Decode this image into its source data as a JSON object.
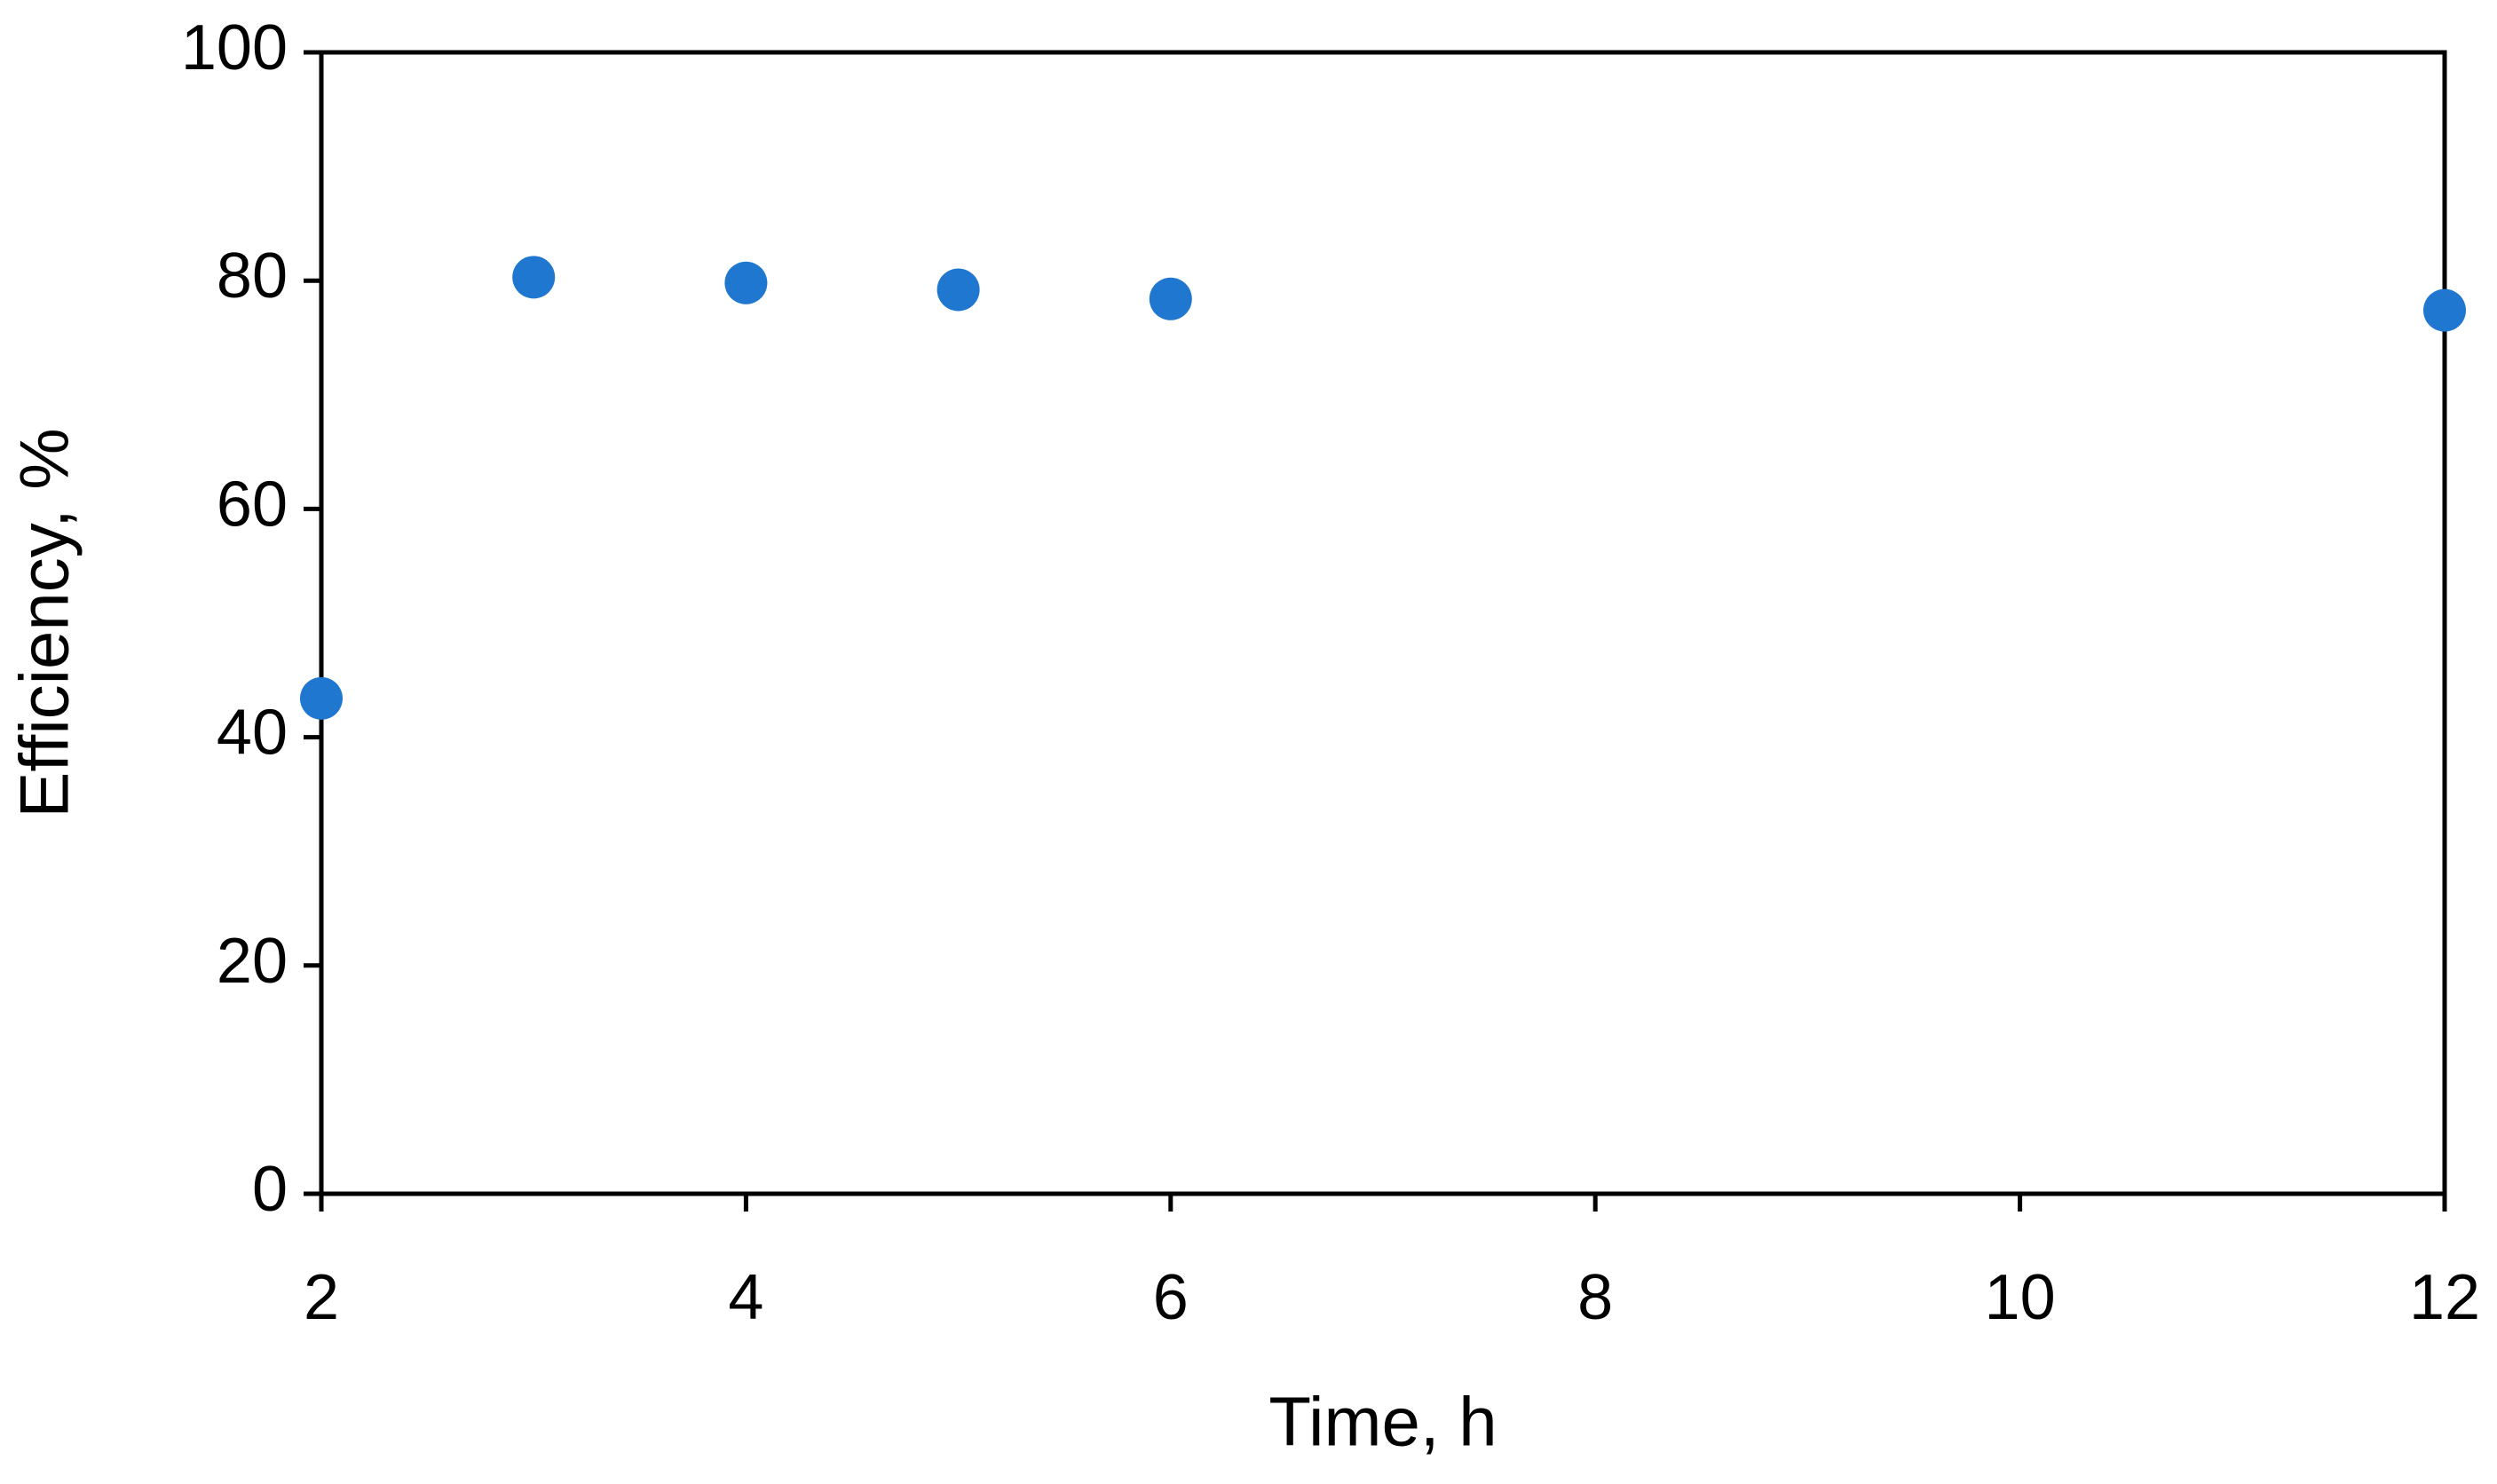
{
  "chart_data": {
    "type": "scatter",
    "x_label": "Time, h",
    "y_label": "Efficiency, %",
    "x": [
      2,
      3,
      4,
      5,
      6,
      12
    ],
    "series": [
      {
        "color": "#1f77d0",
        "values": [
          43.4,
          80.3,
          79.8,
          79.2,
          78.4,
          77.4
        ]
      }
    ],
    "xlim": [
      2,
      12
    ],
    "xticks": [
      2,
      4,
      6,
      8,
      10,
      12
    ],
    "ylim": [
      0,
      100
    ],
    "yticks": [
      0,
      20,
      40,
      60,
      80,
      100
    ],
    "grid": false
  }
}
